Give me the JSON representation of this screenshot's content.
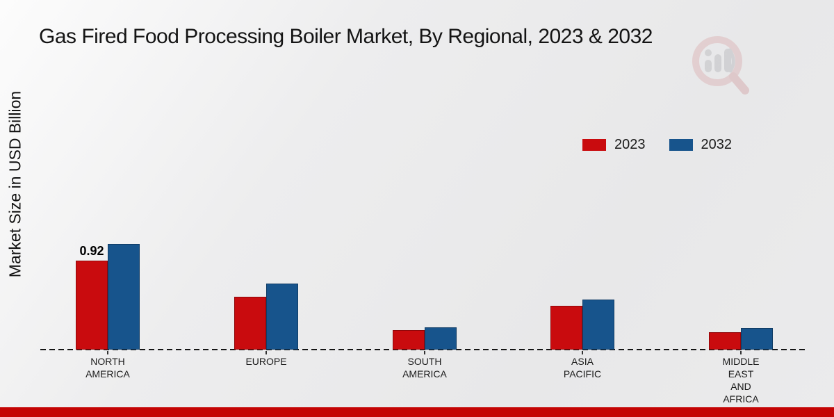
{
  "title": "Gas Fired Food Processing Boiler Market, By Regional, 2023 & 2032",
  "y_axis_label": "Market Size in USD Billion",
  "colors": {
    "series_2023": "#c90b0e",
    "series_2032": "#17548c",
    "footer_bar": "#c40404",
    "axis_line": "#141414",
    "background": "#eaeaeb"
  },
  "legend": {
    "items": [
      {
        "label": "2023",
        "color": "#c90b0e"
      },
      {
        "label": "2032",
        "color": "#17548c"
      }
    ]
  },
  "chart_data": {
    "type": "bar",
    "title": "Gas Fired Food Processing Boiler Market, By Regional, 2023 & 2032",
    "xlabel": "",
    "ylabel": "Market Size in USD Billion",
    "categories": [
      "North America",
      "Europe",
      "South America",
      "Asia Pacific",
      "Middle East and Africa"
    ],
    "tick_labels": [
      "NORTH\nAMERICA",
      "EUROPE",
      "SOUTH\nAMERICA",
      "ASIA\nPACIFIC",
      "MIDDLE\nEAST\nAND\nAFRICA"
    ],
    "series": [
      {
        "name": "2023",
        "color": "#c90b0e",
        "values": [
          0.92,
          0.55,
          0.2,
          0.45,
          0.18
        ]
      },
      {
        "name": "2032",
        "color": "#17548c",
        "values": [
          1.09,
          0.68,
          0.23,
          0.52,
          0.22
        ]
      }
    ],
    "annotations": [
      {
        "series": "2023",
        "category": "North America",
        "text": "0.92"
      }
    ],
    "ylim": [
      0,
      1.2
    ],
    "grid": false,
    "y_axis_ticks_visible": false,
    "legend_position": "upper right",
    "baseline_style": "dashed"
  },
  "watermark": {
    "name": "magnifier-bar-chart-logo"
  }
}
